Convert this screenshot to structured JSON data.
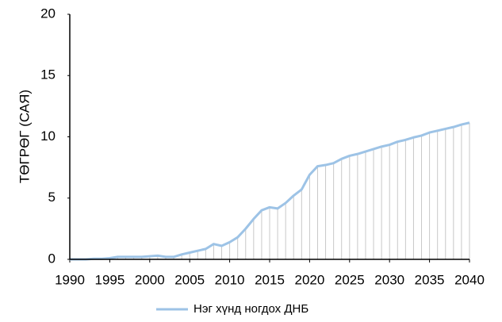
{
  "chart_data": {
    "type": "line",
    "y_label": "ТӨГРӨГ (САЯ)",
    "x": [
      1990,
      1991,
      1992,
      1993,
      1994,
      1995,
      1996,
      1997,
      1998,
      1999,
      2000,
      2001,
      2002,
      2003,
      2004,
      2005,
      2006,
      2007,
      2008,
      2009,
      2010,
      2011,
      2012,
      2013,
      2014,
      2015,
      2016,
      2017,
      2018,
      2019,
      2020,
      2021,
      2022,
      2023,
      2024,
      2025,
      2026,
      2027,
      2028,
      2029,
      2030,
      2031,
      2032,
      2033,
      2034,
      2035,
      2036,
      2037,
      2038,
      2039,
      2040
    ],
    "series": [
      {
        "name": "Нэг хүнд ногдох ДНБ",
        "color": "#9dc3e6",
        "values": [
          0,
          0,
          0,
          0.05,
          0.05,
          0.1,
          0.2,
          0.2,
          0.2,
          0.2,
          0.25,
          0.3,
          0.2,
          0.2,
          0.4,
          0.55,
          0.7,
          0.85,
          1.25,
          1.1,
          1.4,
          1.8,
          2.5,
          3.3,
          4.0,
          4.25,
          4.15,
          4.6,
          5.2,
          5.7,
          6.9,
          7.6,
          7.7,
          7.85,
          8.2,
          8.45,
          8.6,
          8.8,
          9.0,
          9.2,
          9.35,
          9.6,
          9.75,
          9.95,
          10.1,
          10.35,
          10.5,
          10.65,
          10.8,
          11.0,
          11.15
        ]
      }
    ],
    "xlim": [
      1990,
      2040
    ],
    "xticks": [
      1990,
      1995,
      2000,
      2005,
      2010,
      2015,
      2020,
      2025,
      2030,
      2035,
      2040
    ],
    "ylim": [
      0,
      20
    ],
    "yticks": [
      0,
      5,
      10,
      15,
      20
    ],
    "drop_lines": true,
    "drop_line_color": "#c8c8c8",
    "legend": "bottom"
  }
}
